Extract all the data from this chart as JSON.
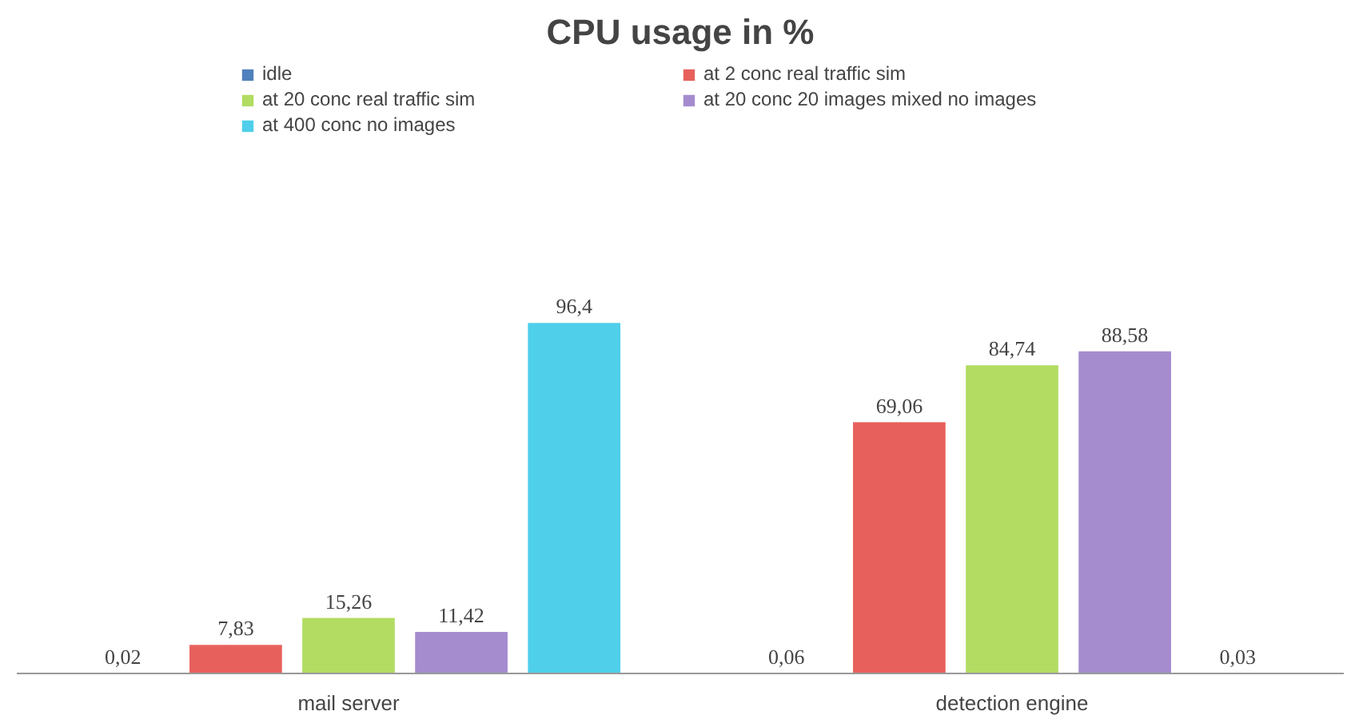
{
  "chart_data": {
    "type": "bar",
    "title": "CPU usage in %",
    "categories": [
      "mail server",
      "detection engine"
    ],
    "legend": "top",
    "series": [
      {
        "name": "idle",
        "color": "#4f81bd",
        "values": [
          0.02,
          0.06
        ],
        "value_labels": [
          "0,02",
          "0,06"
        ]
      },
      {
        "name": "at 2 conc real traffic sim",
        "color": "#e8605c",
        "values": [
          7.83,
          69.06
        ],
        "value_labels": [
          "7,83",
          "69,06"
        ]
      },
      {
        "name": "at 20 conc real traffic sim",
        "color": "#b2dc62",
        "values": [
          15.26,
          84.74
        ],
        "value_labels": [
          "15,26",
          "84,74"
        ]
      },
      {
        "name": "at 20 conc 20 images mixed no images",
        "color": "#a48ccf",
        "values": [
          11.42,
          88.58
        ],
        "value_labels": [
          "11,42",
          "88,58"
        ]
      },
      {
        "name": "at 400 conc no images",
        "color": "#4fcfea",
        "values": [
          96.4,
          0.03
        ],
        "value_labels": [
          "96,4",
          "0,03"
        ]
      }
    ]
  }
}
